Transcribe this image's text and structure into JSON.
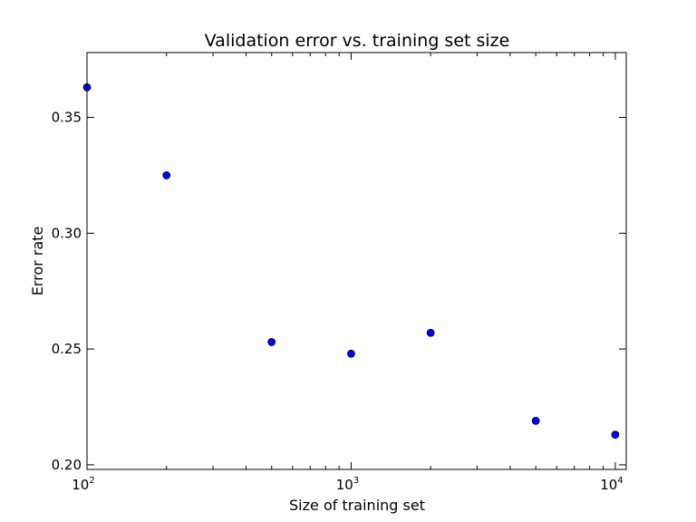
{
  "chart_data": {
    "type": "scatter",
    "title": "Validation error vs. training set size",
    "xlabel": "Size of training set",
    "ylabel": "Error rate",
    "x_scale": "log",
    "xlim": [
      100,
      11000
    ],
    "ylim": [
      0.198,
      0.378
    ],
    "grid": false,
    "marker_color": "#0000ff",
    "marker_edge_color": "#000000",
    "x_ticks": [
      {
        "value": 100,
        "base": "10",
        "exp": "2"
      },
      {
        "value": 1000,
        "base": "10",
        "exp": "3"
      },
      {
        "value": 10000,
        "base": "10",
        "exp": "4"
      }
    ],
    "y_ticks": [
      {
        "value": 0.2,
        "label": "0.20"
      },
      {
        "value": 0.25,
        "label": "0.25"
      },
      {
        "value": 0.3,
        "label": "0.30"
      },
      {
        "value": 0.35,
        "label": "0.35"
      }
    ],
    "series": [
      {
        "points": [
          {
            "x": 100,
            "y": 0.363
          },
          {
            "x": 200,
            "y": 0.325
          },
          {
            "x": 500,
            "y": 0.253
          },
          {
            "x": 1000,
            "y": 0.248
          },
          {
            "x": 2000,
            "y": 0.257
          },
          {
            "x": 5000,
            "y": 0.219
          },
          {
            "x": 10000,
            "y": 0.213
          }
        ]
      }
    ]
  }
}
